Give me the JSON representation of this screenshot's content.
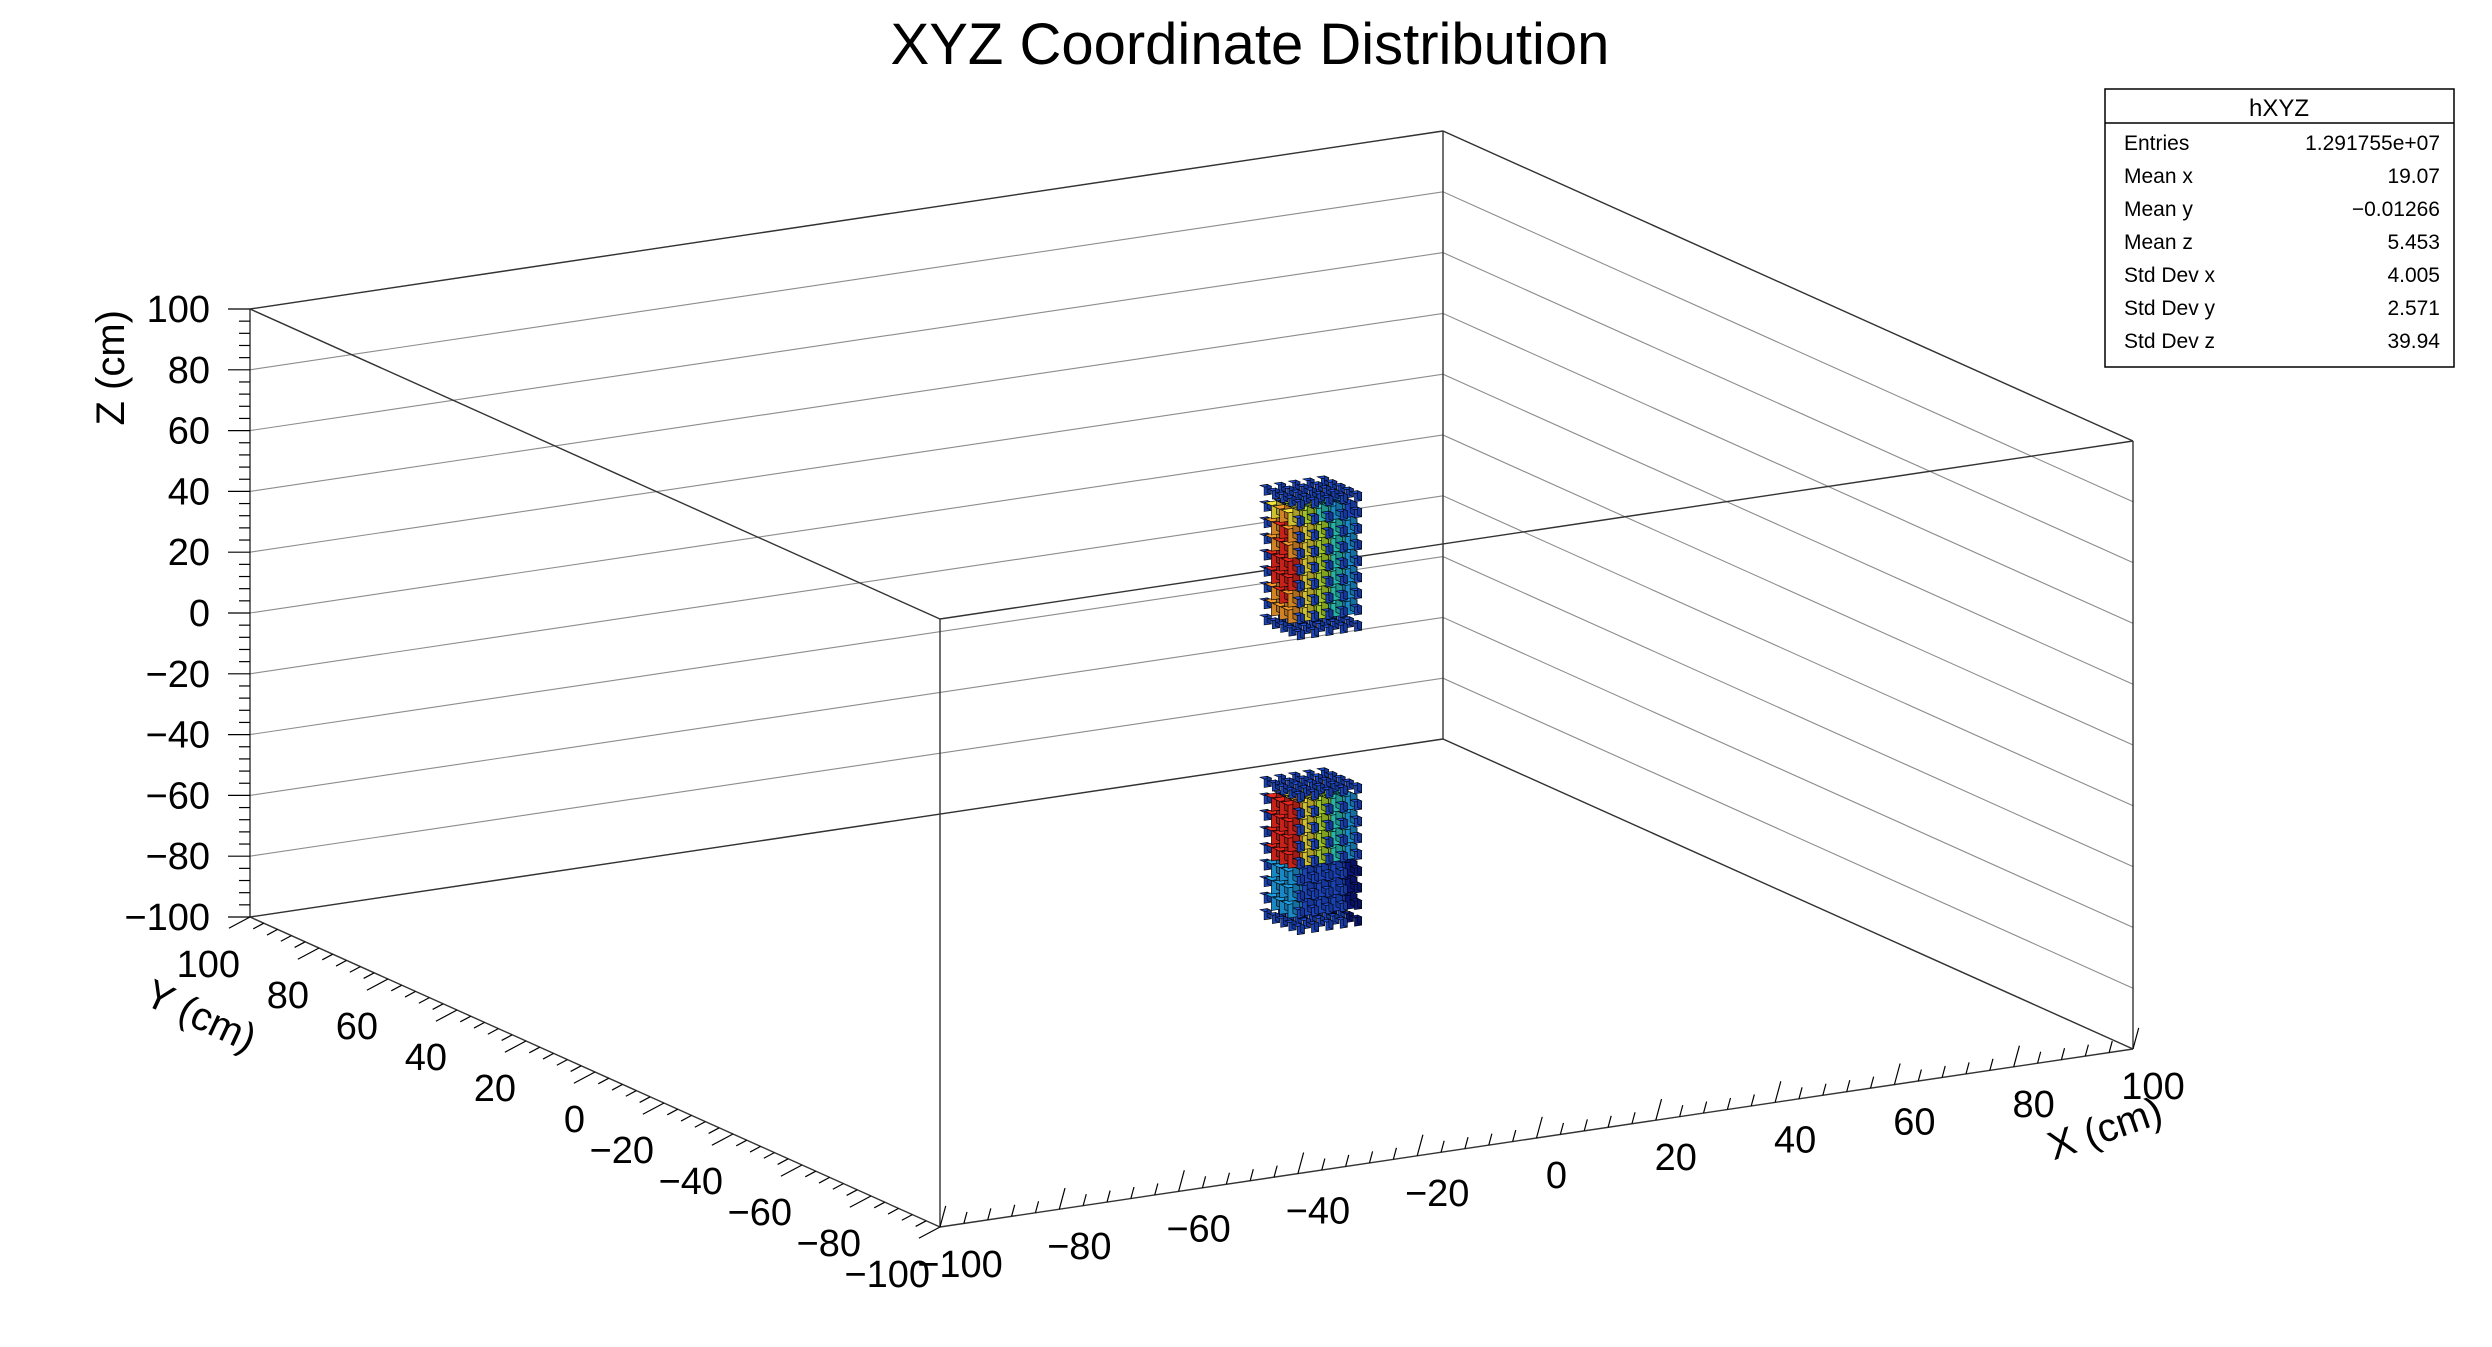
{
  "chart_data": {
    "type": "lego3d",
    "title": "XYZ Coordinate Distribution",
    "xlabel": "X (cm)",
    "ylabel": "Y (cm)",
    "zlabel": "Z (cm)",
    "xlim": [
      -100,
      100
    ],
    "ylim": [
      -100,
      100
    ],
    "zlim": [
      -100,
      100
    ],
    "x_ticks": [
      "−100",
      "−80",
      "−60",
      "−40",
      "−20",
      "0",
      "20",
      "40",
      "60",
      "80",
      "100"
    ],
    "y_ticks": [
      "−100",
      "−80",
      "−60",
      "−40",
      "−20",
      "0",
      "20",
      "40",
      "60",
      "80",
      "100"
    ],
    "z_ticks": [
      "−100",
      "−80",
      "−60",
      "−40",
      "−20",
      "0",
      "20",
      "40",
      "60",
      "80",
      "100"
    ],
    "grid": true,
    "palette": [
      "#0a1a8c",
      "#1f4fd8",
      "#1ea0e6",
      "#2ed2c8",
      "#b8e62e",
      "#f2e23a",
      "#f59a2a",
      "#e8281e",
      "#8a1010"
    ],
    "clusters": [
      {
        "x_range": [
          14,
          26
        ],
        "y_range": [
          -6,
          6
        ],
        "z_range": [
          10,
          58
        ]
      },
      {
        "x_range": [
          14,
          26
        ],
        "y_range": [
          -6,
          6
        ],
        "z_range": [
          -87,
          -38
        ]
      }
    ],
    "stats": {
      "name": "hXYZ",
      "rows": [
        {
          "label": "Entries",
          "value": "1.291755e+07"
        },
        {
          "label": "Mean x",
          "value": "19.07"
        },
        {
          "label": "Mean y",
          "value": "−0.01266"
        },
        {
          "label": "Mean z",
          "value": "5.453"
        },
        {
          "label": "Std Dev x",
          "value": "4.005"
        },
        {
          "label": "Std Dev y",
          "value": "2.571"
        },
        {
          "label": "Std Dev z",
          "value": "39.94"
        }
      ]
    }
  }
}
